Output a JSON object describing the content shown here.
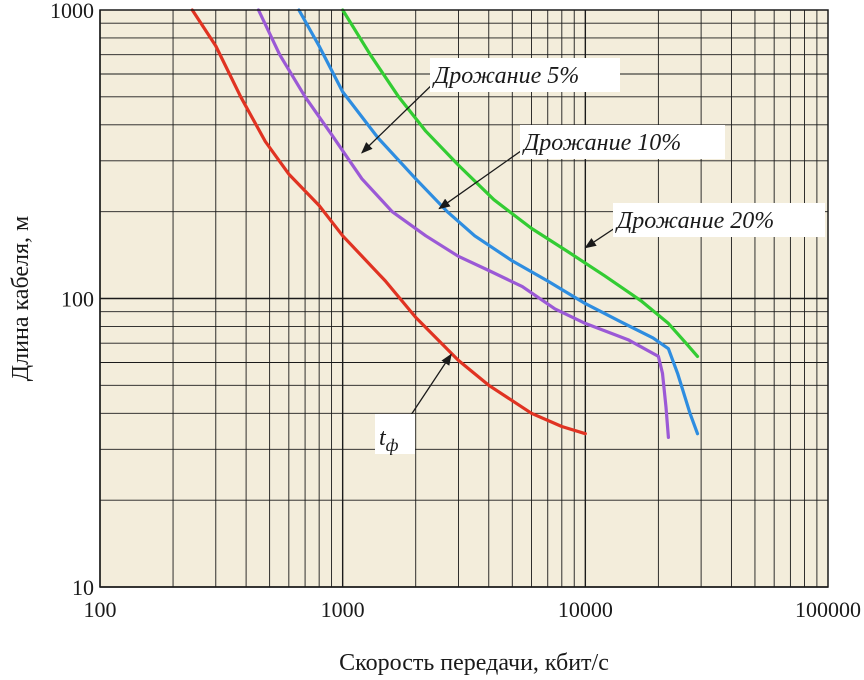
{
  "chart_data": {
    "type": "line",
    "xscale": "log",
    "yscale": "log",
    "xlim": [
      100,
      100000
    ],
    "ylim": [
      10,
      1000
    ],
    "grid": true,
    "xlabel": "Скорость передачи, кбит/с",
    "ylabel": "Длина кабеля, м",
    "x_ticks": [
      "100",
      "1000",
      "10000",
      "100000"
    ],
    "y_ticks": [
      "10",
      "100",
      "1000"
    ],
    "background_color": "#f3eddb",
    "grid_color": "#1a1a1a",
    "series": [
      {
        "name": "Дрожание 5%",
        "color": "#9b59d6",
        "points": [
          [
            450,
            1000
          ],
          [
            550,
            700
          ],
          [
            700,
            500
          ],
          [
            900,
            370
          ],
          [
            1200,
            260
          ],
          [
            1600,
            200
          ],
          [
            2200,
            165
          ],
          [
            3000,
            140
          ],
          [
            4000,
            125
          ],
          [
            5500,
            110
          ],
          [
            7500,
            92
          ],
          [
            10000,
            82
          ],
          [
            15000,
            72
          ],
          [
            20000,
            63
          ],
          [
            20800,
            55
          ],
          [
            21500,
            42
          ],
          [
            22000,
            33
          ]
        ]
      },
      {
        "name": "Дрожание 10%",
        "color": "#2e8de0",
        "points": [
          [
            660,
            1000
          ],
          [
            800,
            750
          ],
          [
            1000,
            520
          ],
          [
            1400,
            360
          ],
          [
            2000,
            260
          ],
          [
            2700,
            200
          ],
          [
            3500,
            165
          ],
          [
            5000,
            135
          ],
          [
            7000,
            115
          ],
          [
            10000,
            96
          ],
          [
            14000,
            83
          ],
          [
            19000,
            73
          ],
          [
            22000,
            67
          ],
          [
            24000,
            55
          ],
          [
            27000,
            40
          ],
          [
            29000,
            34
          ]
        ]
      },
      {
        "name": "Дрожание 20%",
        "color": "#33cc33",
        "points": [
          [
            1000,
            1000
          ],
          [
            1300,
            700
          ],
          [
            1700,
            500
          ],
          [
            2200,
            380
          ],
          [
            3000,
            290
          ],
          [
            4200,
            220
          ],
          [
            6000,
            175
          ],
          [
            8500,
            145
          ],
          [
            12000,
            120
          ],
          [
            17000,
            98
          ],
          [
            22000,
            82
          ],
          [
            26000,
            70
          ],
          [
            29000,
            63
          ]
        ]
      },
      {
        "name": "tф",
        "color": "#e03322",
        "points": [
          [
            240,
            1000
          ],
          [
            300,
            750
          ],
          [
            380,
            500
          ],
          [
            480,
            350
          ],
          [
            600,
            270
          ],
          [
            800,
            210
          ],
          [
            1000,
            165
          ],
          [
            1500,
            115
          ],
          [
            2000,
            86
          ],
          [
            3000,
            61
          ],
          [
            4000,
            50
          ],
          [
            6000,
            40
          ],
          [
            8000,
            36
          ],
          [
            10000,
            34
          ]
        ]
      }
    ],
    "annotations": [
      {
        "text": "Дрожание 5%",
        "series": "Дрожание 5%",
        "arrow_to": [
          1200,
          320
        ]
      },
      {
        "text": "Дрожание 10%",
        "series": "Дрожание 10%",
        "arrow_to": [
          2500,
          205
        ]
      },
      {
        "text": "Дрожание 20%",
        "series": "Дрожание 20%",
        "arrow_to": [
          10000,
          150
        ]
      },
      {
        "text": "t",
        "sub": "ф",
        "series": "tф",
        "arrow_to": [
          2800,
          64
        ]
      }
    ]
  }
}
